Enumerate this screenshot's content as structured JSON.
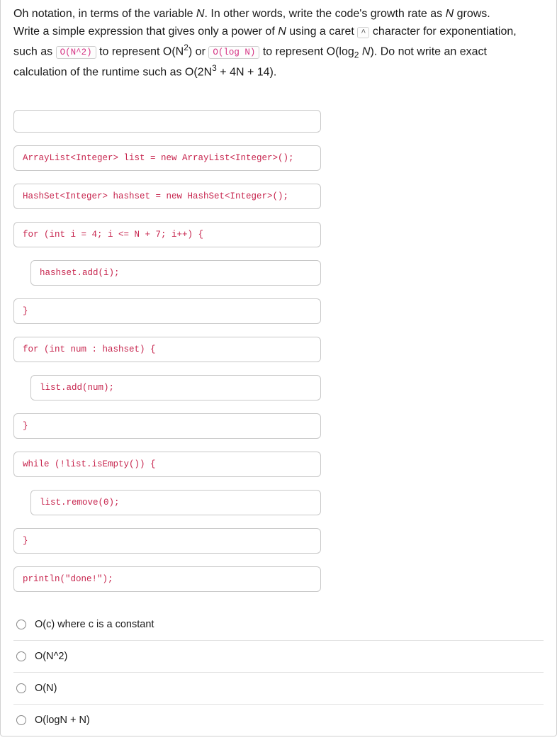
{
  "question": {
    "line1_pre": "Oh notation, in terms of the variable ",
    "line1_var": "N",
    "line1_post": ". In other words, write the code's growth rate as ",
    "line1_var2": "N",
    "line1_end": " grows.",
    "line2_pre": "Write a simple expression that gives only a power of ",
    "line2_var": "N",
    "line2_mid": " using a caret ",
    "caret_key": "^",
    "line2_post": " character for exponentiation,",
    "line3_pre": "such as ",
    "tag1": "O(N^2)",
    "line3_mid1": " to represent O(N",
    "sup2": "2",
    "line3_mid2": ") or ",
    "tag2": "O(log N)",
    "line3_mid3": " to represent O(log",
    "sub2": "2",
    "line3_var": " N",
    "line3_post": "). Do not write an exact",
    "line4_pre": "calculation of the runtime such as O(2N",
    "line4_sup": "3",
    "line4_post": " + 4N + 14)."
  },
  "code": {
    "l1": "ArrayList<Integer> list = new ArrayList<Integer>();",
    "l2": "HashSet<Integer> hashset = new HashSet<Integer>();",
    "l3": "for (int i = 4; i <= N + 7; i++) {",
    "l4": "hashset.add(i);",
    "l5": "}",
    "l6": "for (int num : hashset) {",
    "l7": "list.add(num);",
    "l8": "}",
    "l9": "while (!list.isEmpty()) {",
    "l10": "list.remove(0);",
    "l11": "}",
    "l12": "println(\"done!\");"
  },
  "options": {
    "a": "O(c) where c is a constant",
    "b": "O(N^2)",
    "c": "O(N)",
    "d": "O(logN + N)"
  }
}
